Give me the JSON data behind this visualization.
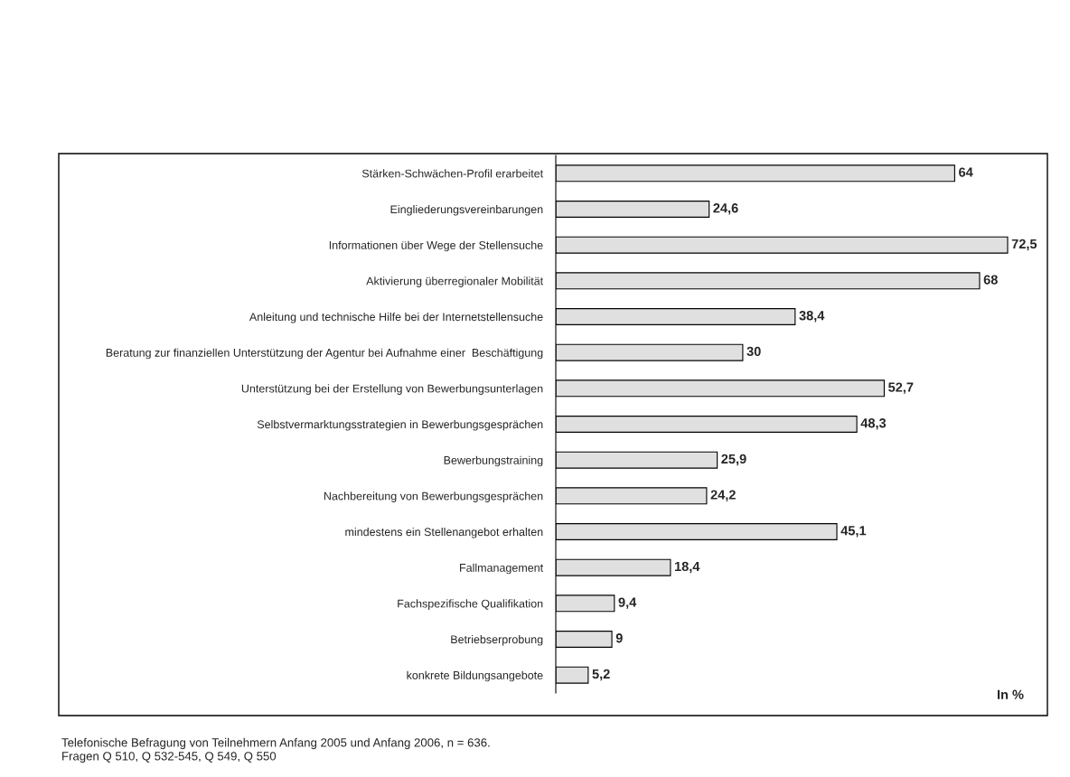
{
  "chart_data": {
    "type": "bar",
    "orientation": "horizontal",
    "data_labels": true,
    "grid": false,
    "legend": false,
    "categories": [
      "Stärken-Schwächen-Profil erarbeitet",
      "Eingliederungsvereinbarungen",
      "Informationen über Wege der Stellensuche",
      "Aktivierung überregionaler Mobilität",
      "Anleitung und technische Hilfe bei der Internetstellensuche",
      "Beratung zur finanziellen Unterstützung der Agentur bei Aufnahme einer  Beschäftigung",
      "Unterstützung bei der Erstellung von Bewerbungsunterlagen",
      "Selbstvermarktungsstrategien in Bewerbungsgesprächen",
      "Bewerbungstraining",
      "Nachbereitung von Bewerbungsgesprächen",
      "mindestens ein Stellenangebot erhalten",
      "Fallmanagement",
      "Fachspezifische Qualifikation",
      "Betriebserprobung",
      "konkrete Bildungsangebote"
    ],
    "values": [
      64,
      24.6,
      72.5,
      68,
      38.4,
      30,
      52.7,
      48.3,
      25.9,
      24.2,
      45.1,
      18.4,
      9.4,
      9,
      5.2
    ],
    "value_labels": [
      "64",
      "24,6",
      "72,5",
      "68",
      "38,4",
      "30",
      "52,7",
      "48,3",
      "25,9",
      "24,2",
      "45,1",
      "18,4",
      "9,4",
      "9",
      "5,2"
    ],
    "color": "#e0e0e0",
    "annotations": [
      "In %",
      "Telefonische Befragung von Teilnehmern Anfang 2005 und Anfang 2006, n = 636.",
      "Fragen Q 510, Q 532-545, Q 549, Q 550"
    ]
  }
}
